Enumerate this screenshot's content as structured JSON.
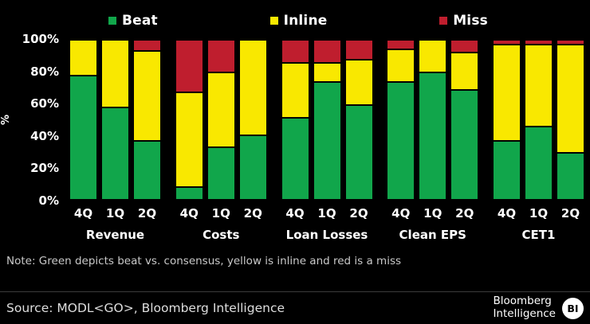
{
  "legend": [
    {
      "id": "beat",
      "label": "Beat",
      "color": "#11a64b"
    },
    {
      "id": "inline",
      "label": "Inline",
      "color": "#f9e800"
    },
    {
      "id": "miss",
      "label": "Miss",
      "color": "#bf1e2e"
    }
  ],
  "y_axis": {
    "unit": "%",
    "ticks": [
      "100%",
      "80%",
      "60%",
      "40%",
      "20%",
      "0%"
    ]
  },
  "chart_data": {
    "type": "bar",
    "stacked": true,
    "stack_order_top_to_bottom": [
      "miss",
      "inline",
      "beat"
    ],
    "series_names": [
      "Beat",
      "Inline",
      "Miss"
    ],
    "colors": {
      "beat": "#11a64b",
      "inline": "#f9e800",
      "miss": "#bf1e2e"
    },
    "ylabel": "%",
    "ylim": [
      0,
      100
    ],
    "grid": false,
    "legend_position": "top",
    "groups": [
      {
        "name": "Revenue",
        "bars": [
          {
            "quarter": "4Q",
            "beat": 78,
            "inline": 22,
            "miss": 0
          },
          {
            "quarter": "1Q",
            "beat": 58,
            "inline": 42,
            "miss": 0
          },
          {
            "quarter": "2Q",
            "beat": 37,
            "inline": 57,
            "miss": 6
          }
        ]
      },
      {
        "name": "Costs",
        "bars": [
          {
            "quarter": "4Q",
            "beat": 7,
            "inline": 60,
            "miss": 33
          },
          {
            "quarter": "1Q",
            "beat": 33,
            "inline": 47,
            "miss": 20
          },
          {
            "quarter": "2Q",
            "beat": 40,
            "inline": 60,
            "miss": 0
          }
        ]
      },
      {
        "name": "Loan Losses",
        "bars": [
          {
            "quarter": "4Q",
            "beat": 52,
            "inline": 34,
            "miss": 14
          },
          {
            "quarter": "1Q",
            "beat": 75,
            "inline": 11,
            "miss": 14
          },
          {
            "quarter": "2Q",
            "beat": 60,
            "inline": 28,
            "miss": 12
          }
        ]
      },
      {
        "name": "Clean EPS",
        "bars": [
          {
            "quarter": "4Q",
            "beat": 75,
            "inline": 20,
            "miss": 5
          },
          {
            "quarter": "1Q",
            "beat": 80,
            "inline": 20,
            "miss": 0
          },
          {
            "quarter": "2Q",
            "beat": 70,
            "inline": 23,
            "miss": 7
          }
        ]
      },
      {
        "name": "CET1",
        "bars": [
          {
            "quarter": "4Q",
            "beat": 37,
            "inline": 61,
            "miss": 2
          },
          {
            "quarter": "1Q",
            "beat": 46,
            "inline": 52,
            "miss": 2
          },
          {
            "quarter": "2Q",
            "beat": 29,
            "inline": 69,
            "miss": 2
          }
        ]
      }
    ]
  },
  "note": "Note: Green depicts beat vs. consensus, yellow is inline and red is a miss",
  "source": "Source: MODL<GO>, Bloomberg Intelligence",
  "branding": {
    "line1": "Bloomberg",
    "line2": "Intelligence",
    "badge": "BI"
  }
}
